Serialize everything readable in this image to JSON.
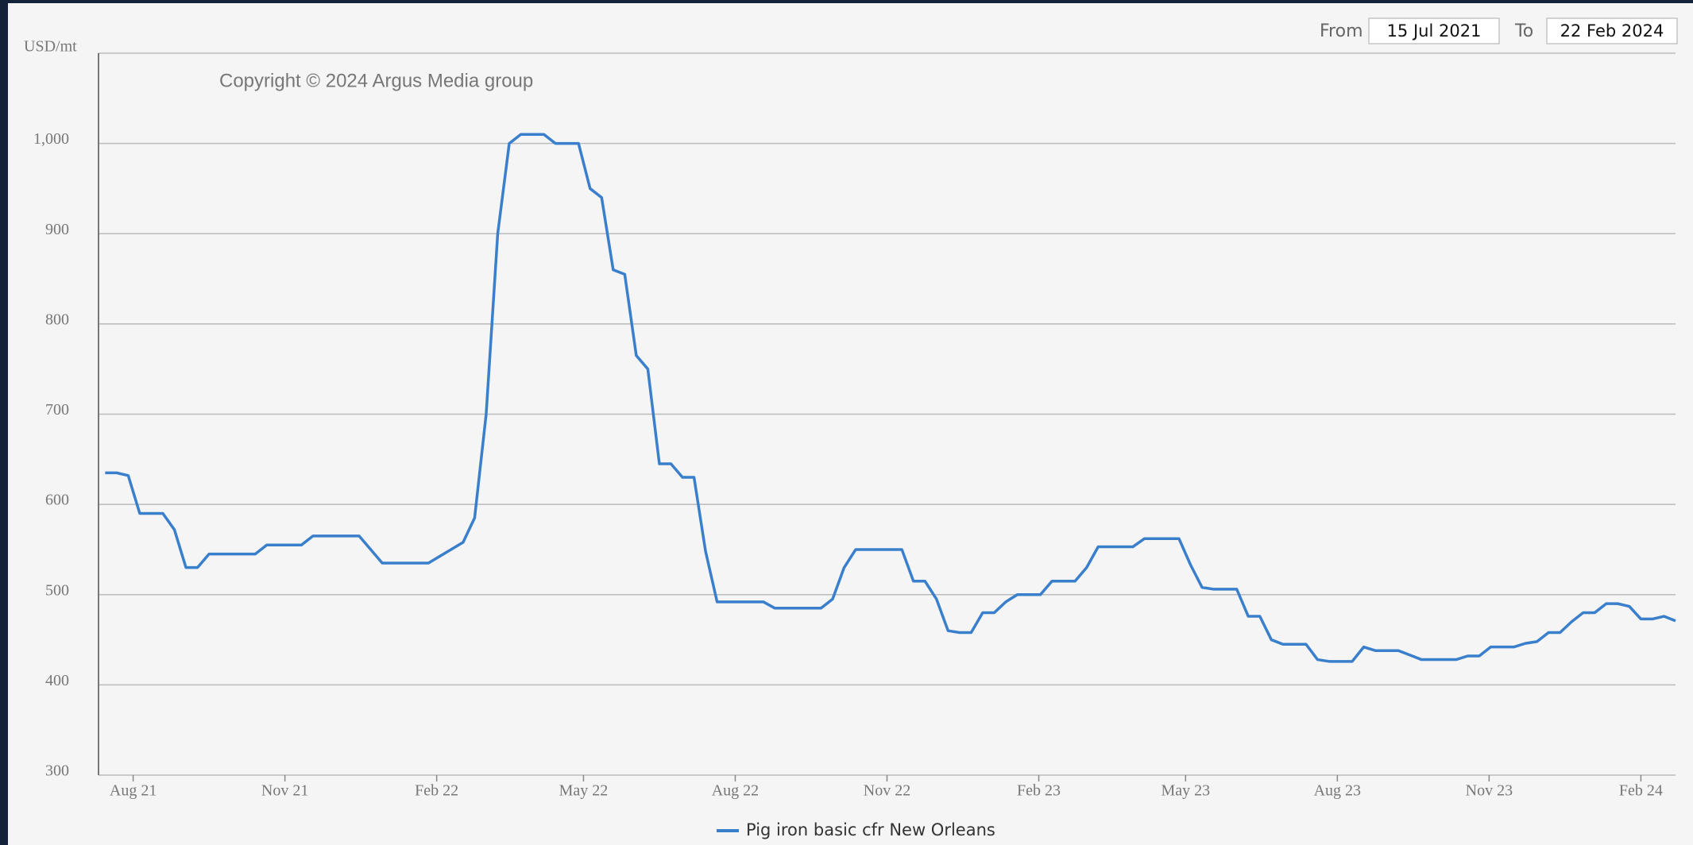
{
  "date_range": {
    "from_label": "From",
    "from": "15 Jul 2021",
    "to_label": "To",
    "to": "22 Feb 2024"
  },
  "chart_data": {
    "type": "line",
    "ylabel": "USD/mt",
    "annotation": "Copyright © 2024 Argus Media group",
    "x": [
      "2021-07-15",
      "2021-07-22",
      "2021-07-29",
      "2021-08-05",
      "2021-08-19",
      "2021-08-26",
      "2021-09-02",
      "2021-09-09",
      "2021-09-16",
      "2021-10-14",
      "2021-10-21",
      "2021-11-11",
      "2021-11-18",
      "2021-12-16",
      "2021-12-30",
      "2022-01-27",
      "2022-02-17",
      "2022-02-24",
      "2022-03-03",
      "2022-03-10",
      "2022-03-17",
      "2022-03-24",
      "2022-04-07",
      "2022-04-14",
      "2022-04-28",
      "2022-05-05",
      "2022-05-12",
      "2022-05-19",
      "2022-05-26",
      "2022-06-02",
      "2022-06-09",
      "2022-06-16",
      "2022-06-23",
      "2022-06-30",
      "2022-07-07",
      "2022-07-14",
      "2022-07-21",
      "2022-08-18",
      "2022-08-25",
      "2022-09-22",
      "2022-09-29",
      "2022-10-06",
      "2022-10-13",
      "2022-11-10",
      "2022-11-17",
      "2022-11-24",
      "2022-12-01",
      "2022-12-08",
      "2022-12-15",
      "2022-12-22",
      "2022-12-29",
      "2023-01-05",
      "2023-01-12",
      "2023-01-19",
      "2023-02-02",
      "2023-02-09",
      "2023-02-23",
      "2023-03-02",
      "2023-03-09",
      "2023-03-30",
      "2023-04-06",
      "2023-04-27",
      "2023-05-04",
      "2023-05-11",
      "2023-05-18",
      "2023-06-01",
      "2023-06-08",
      "2023-06-15",
      "2023-06-22",
      "2023-06-29",
      "2023-07-13",
      "2023-07-20",
      "2023-07-27",
      "2023-08-10",
      "2023-08-17",
      "2023-08-24",
      "2023-09-07",
      "2023-09-21",
      "2023-10-12",
      "2023-10-19",
      "2023-10-26",
      "2023-11-02",
      "2023-11-16",
      "2023-11-23",
      "2023-11-30",
      "2023-12-07",
      "2023-12-14",
      "2023-12-21",
      "2023-12-28",
      "2024-01-04",
      "2024-01-11",
      "2024-01-18",
      "2024-01-25",
      "2024-02-01",
      "2024-02-08",
      "2024-02-15",
      "2024-02-22"
    ],
    "series": [
      {
        "name": "Pig iron basic cfr New Orleans",
        "color": "#3a7fcc",
        "values": [
          635,
          635,
          632,
          590,
          590,
          572,
          530,
          530,
          545,
          545,
          555,
          555,
          565,
          565,
          535,
          535,
          558,
          585,
          700,
          900,
          1000,
          1010,
          1010,
          1000,
          1000,
          950,
          940,
          860,
          855,
          765,
          750,
          645,
          645,
          630,
          630,
          548,
          492,
          492,
          485,
          485,
          495,
          530,
          550,
          550,
          515,
          515,
          495,
          460,
          458,
          458,
          480,
          480,
          492,
          500,
          500,
          515,
          515,
          530,
          553,
          553,
          562,
          562,
          533,
          508,
          506,
          506,
          476,
          476,
          450,
          445,
          445,
          428,
          426,
          426,
          442,
          438,
          438,
          428,
          428,
          432,
          432,
          442,
          442,
          446,
          448,
          458,
          458,
          470,
          480,
          480,
          490,
          490,
          487,
          473,
          473,
          476,
          471
        ]
      }
    ],
    "xlim": [
      "2021-07-11",
      "2024-02-22"
    ],
    "xticks": [
      {
        "value": "2021-08-01",
        "label": "Aug 21"
      },
      {
        "value": "2021-11-01",
        "label": "Nov 21"
      },
      {
        "value": "2022-02-01",
        "label": "Feb 22"
      },
      {
        "value": "2022-05-01",
        "label": "May 22"
      },
      {
        "value": "2022-08-01",
        "label": "Aug 22"
      },
      {
        "value": "2022-11-01",
        "label": "Nov 22"
      },
      {
        "value": "2023-02-01",
        "label": "Feb 23"
      },
      {
        "value": "2023-05-01",
        "label": "May 23"
      },
      {
        "value": "2023-08-01",
        "label": "Aug 23"
      },
      {
        "value": "2023-11-01",
        "label": "Nov 23"
      },
      {
        "value": "2024-02-01",
        "label": "Feb 24"
      }
    ],
    "ylim": [
      300,
      1100
    ],
    "yticks": [
      300,
      400,
      500,
      600,
      700,
      800,
      900,
      {
        "value": 1000,
        "label": "1,000"
      }
    ],
    "grid": true,
    "legend": "bottom"
  }
}
